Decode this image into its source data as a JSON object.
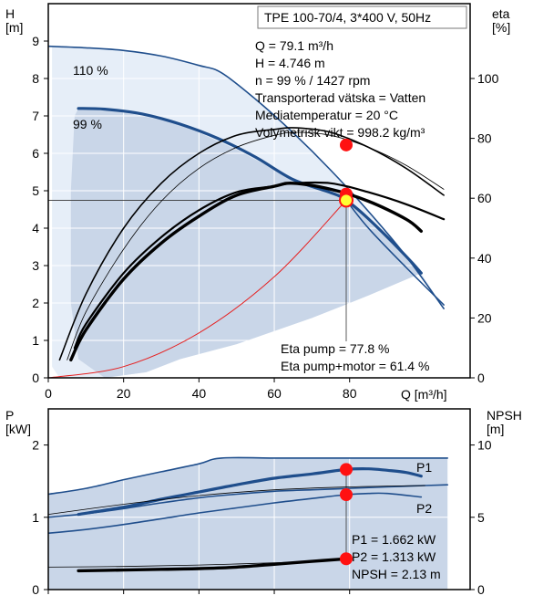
{
  "colors": {
    "frame": "#000000",
    "envelope_dark": "#c9d6e8",
    "envelope_light": "#e6eef8",
    "curve_blue": "#1f4e8c",
    "curve_black": "#000000",
    "system_red": "#e62020",
    "operating_point_fill": "#ffff33",
    "marker_red": "#ff1111"
  },
  "chart_data": [
    {
      "type": "line",
      "title": "TPE 100-70/4, 3*400 V, 50Hz",
      "ylabel_left": "H\n[m]",
      "ylabel_right": "eta\n[%]",
      "xlabel": "Q [m³/h]",
      "xlim": [
        0,
        112
      ],
      "ylim": [
        0,
        10
      ],
      "ylim_right": [
        0,
        125
      ],
      "x_ticks": [
        0,
        20,
        40,
        60,
        80
      ],
      "y_ticks": [
        0,
        1,
        2,
        3,
        4,
        5,
        6,
        7,
        8,
        9
      ],
      "y_ticks_right": [
        0,
        20,
        40,
        60,
        80,
        100
      ],
      "series": [
        {
          "name": "110 %",
          "axis": "left",
          "style": "thin-blue",
          "x": [
            0,
            10,
            20,
            30,
            40,
            46,
            55,
            65,
            75,
            85,
            95,
            105
          ],
          "y": [
            8.86,
            8.82,
            8.75,
            8.6,
            8.35,
            8.15,
            7.45,
            6.55,
            5.55,
            4.45,
            3.25,
            1.85
          ]
        },
        {
          "name": "99 %",
          "axis": "left",
          "style": "thick-blue",
          "x": [
            8,
            15,
            25,
            35,
            45,
            55,
            65,
            75,
            79.1,
            85,
            95,
            99
          ],
          "y": [
            7.2,
            7.18,
            7.05,
            6.78,
            6.4,
            5.9,
            5.3,
            4.95,
            4.746,
            4.25,
            3.25,
            2.8
          ]
        },
        {
          "name": "",
          "axis": "left",
          "style": "thin-blue",
          "x": [
            79.1,
            85,
            95,
            105
          ],
          "y": [
            4.746,
            4.0,
            2.95,
            1.95
          ]
        },
        {
          "name": "",
          "axis": "left",
          "style": "system-red",
          "x": [
            0,
            20,
            40,
            60,
            79.1
          ],
          "y": [
            0,
            0.3,
            1.2,
            2.7,
            4.746
          ]
        },
        {
          "name": "",
          "axis": "right",
          "style": "thin-black",
          "x": [
            3,
            10,
            20,
            30,
            40,
            50,
            60,
            66,
            75,
            85,
            95,
            105
          ],
          "y": [
            6,
            28,
            50,
            65,
            75,
            81,
            83,
            83.5,
            82,
            77,
            70,
            61
          ]
        },
        {
          "name": "",
          "axis": "right",
          "style": "hairline-black",
          "x": [
            5,
            10,
            20,
            30,
            40,
            50,
            60,
            66,
            75,
            85,
            95,
            105
          ],
          "y": [
            6,
            22,
            43,
            59,
            70,
            77,
            81,
            82,
            81,
            77,
            71,
            63
          ]
        },
        {
          "name": "",
          "axis": "right",
          "style": "thick-black",
          "x": [
            6,
            10,
            20,
            30,
            40,
            50,
            60,
            65,
            75,
            85,
            95,
            99
          ],
          "y": [
            6,
            16,
            33,
            45,
            54,
            61,
            64,
            65,
            63,
            59,
            53,
            49
          ]
        },
        {
          "name": "",
          "axis": "right",
          "style": "medium-black",
          "x": [
            7,
            10,
            20,
            30,
            40,
            50,
            60,
            65,
            75,
            85,
            95,
            105
          ],
          "y": [
            10,
            18,
            35,
            47,
            56,
            62,
            64,
            65,
            65,
            62,
            58,
            53
          ]
        }
      ],
      "operating_point": {
        "Q": 79.1,
        "H": 4.746,
        "eta_pump": 77.8,
        "eta_pump_motor": 61.4
      },
      "info_lines": [
        "Q = 79.1 m³/h",
        "H = 4.746 m",
        "n = 99 % / 1427 rpm",
        "Transporterad vätska = Vatten",
        "Mediatemperatur = 20 °C",
        "Volymetrisk vikt = 998.2 kg/m³"
      ],
      "eta_lines": [
        "Eta pump = 77.8 %",
        "Eta pump+motor = 61.4 %"
      ],
      "curve_labels": [
        "110 %",
        "99 %"
      ]
    },
    {
      "type": "line",
      "ylabel_left": "P\n[kW]",
      "ylabel_right": "NPSH\n[m]",
      "xlim": [
        0,
        112
      ],
      "ylim": [
        0,
        2.5
      ],
      "ylim_right": [
        0,
        12.5
      ],
      "y_ticks": [
        0,
        1,
        2
      ],
      "y_ticks_right": [
        0,
        5,
        10
      ],
      "series": [
        {
          "name": "P1",
          "axis": "left",
          "style": "thin-blue",
          "x": [
            0,
            10,
            20,
            30,
            40,
            46,
            60,
            70,
            80,
            90,
            100,
            106
          ],
          "y": [
            1.32,
            1.4,
            1.52,
            1.63,
            1.74,
            1.82,
            1.82,
            1.82,
            1.82,
            1.82,
            1.82,
            1.82
          ]
        },
        {
          "name": "",
          "axis": "left",
          "style": "thick-blue",
          "x": [
            8,
            20,
            30,
            40,
            50,
            60,
            70,
            79.1,
            85,
            90,
            95,
            99
          ],
          "y": [
            1.04,
            1.14,
            1.25,
            1.35,
            1.45,
            1.54,
            1.6,
            1.662,
            1.67,
            1.65,
            1.62,
            1.57
          ]
        },
        {
          "name": "P2",
          "axis": "left",
          "style": "thin-blue",
          "x": [
            0,
            10,
            20,
            30,
            40,
            50,
            60,
            70,
            80,
            90,
            100,
            106
          ],
          "y": [
            1.0,
            1.05,
            1.12,
            1.2,
            1.27,
            1.32,
            1.36,
            1.38,
            1.4,
            1.42,
            1.44,
            1.45
          ]
        },
        {
          "name": "",
          "axis": "left",
          "style": "thin-blue",
          "x": [
            0,
            8,
            20,
            30,
            40,
            50,
            60,
            70,
            79.1,
            85,
            90,
            99
          ],
          "y": [
            0.78,
            0.82,
            0.9,
            0.98,
            1.06,
            1.13,
            1.2,
            1.26,
            1.313,
            1.33,
            1.33,
            1.28
          ]
        },
        {
          "name": "",
          "axis": "left",
          "style": "hairline-black",
          "x": [
            0,
            20,
            40,
            60,
            80,
            100
          ],
          "y": [
            1.04,
            1.18,
            1.3,
            1.38,
            1.42,
            1.44
          ]
        },
        {
          "name": "",
          "axis": "right",
          "style": "thick-black",
          "x": [
            8,
            20,
            30,
            40,
            50,
            60,
            70,
            79.1
          ],
          "y": [
            1.3,
            1.35,
            1.4,
            1.45,
            1.55,
            1.75,
            1.95,
            2.13
          ]
        },
        {
          "name": "",
          "axis": "right",
          "style": "hairline-black",
          "x": [
            0,
            20,
            40,
            60,
            80
          ],
          "y": [
            1.55,
            1.6,
            1.7,
            1.85,
            2.05
          ]
        }
      ],
      "values": {
        "P1": 1.662,
        "P2": 1.313,
        "NPSH": 2.13
      },
      "info_lines": [
        "P1 = 1.662 kW",
        "P2 = 1.313 kW",
        "NPSH = 2.13 m"
      ]
    }
  ]
}
